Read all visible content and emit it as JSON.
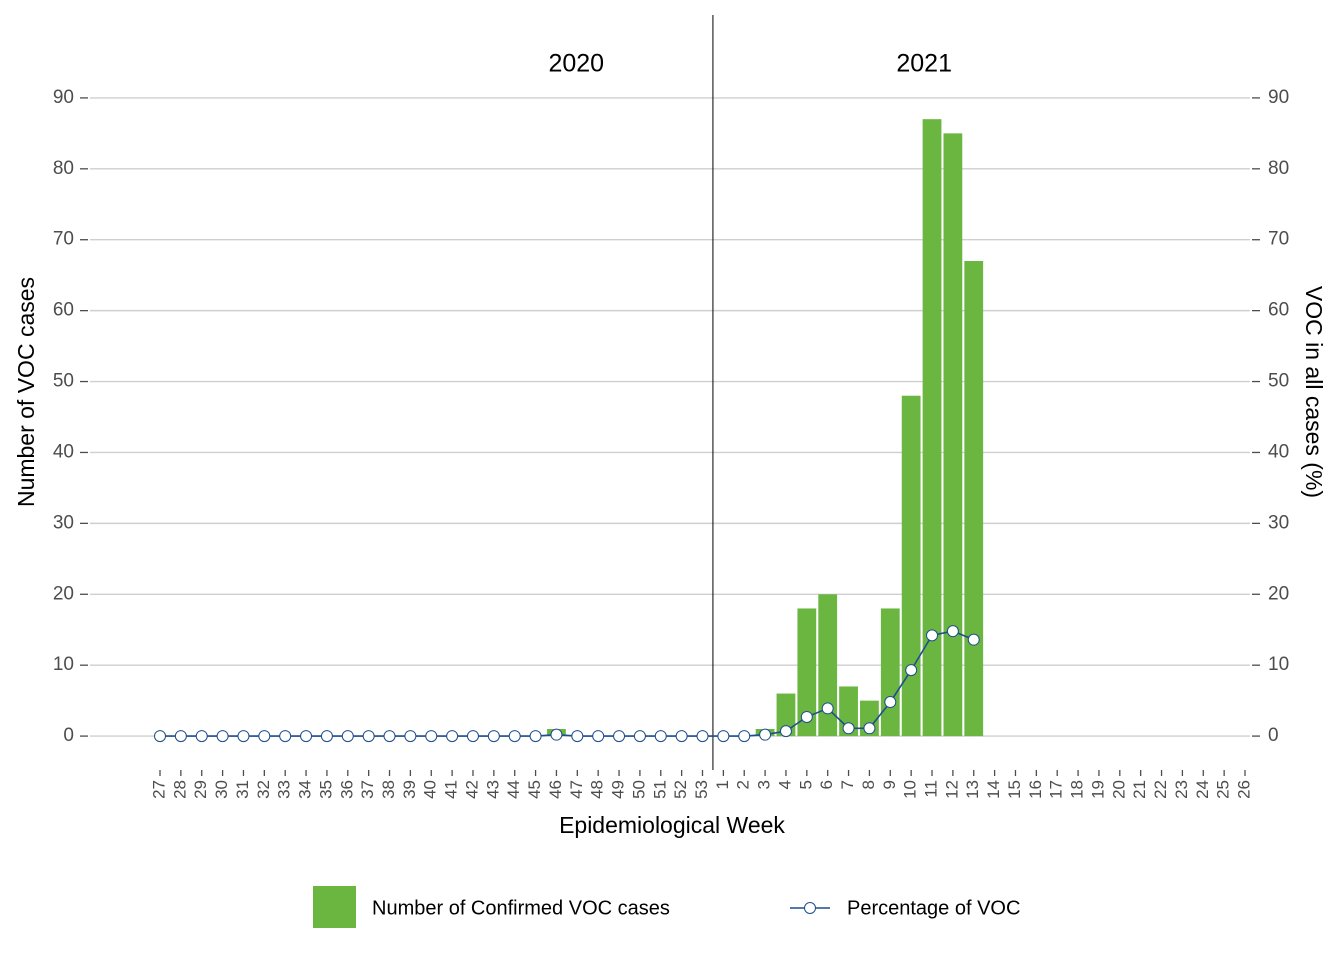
{
  "chart_data": {
    "type": "bar",
    "groups": [
      "2020",
      "2021"
    ],
    "x_label": "Epidemiological Week",
    "y_label": "Number of VOC cases",
    "y2_label": "VOC in all cases (%)",
    "categories": [
      "27",
      "28",
      "29",
      "30",
      "31",
      "32",
      "33",
      "34",
      "35",
      "36",
      "37",
      "38",
      "39",
      "40",
      "41",
      "42",
      "43",
      "44",
      "45",
      "46",
      "47",
      "48",
      "49",
      "50",
      "51",
      "52",
      "53",
      "1",
      "2",
      "3",
      "4",
      "5",
      "6",
      "7",
      "8",
      "9",
      "10",
      "11",
      "12",
      "13",
      "14",
      "15",
      "16",
      "17",
      "18",
      "19",
      "20",
      "21",
      "22",
      "23",
      "24",
      "25",
      "26"
    ],
    "series": [
      {
        "name": "Number of Confirmed VOC cases",
        "type": "bar",
        "color": "#6ab640",
        "values": [
          0,
          0,
          0,
          0,
          0,
          0,
          0,
          0,
          0,
          0,
          0,
          0,
          0,
          0,
          0,
          0,
          0,
          0,
          0,
          1,
          0,
          0,
          0,
          0,
          0,
          0,
          0,
          0,
          0,
          1,
          6,
          18,
          20,
          7,
          5,
          18,
          48,
          87,
          85,
          67,
          null,
          null,
          null,
          null,
          null,
          null,
          null,
          null,
          null,
          null,
          null,
          null,
          null
        ]
      },
      {
        "name": "Percentage of VOC",
        "type": "line",
        "axis": "y2",
        "color": "#1f4e8c",
        "values": [
          0,
          0,
          0,
          0,
          0,
          0,
          0,
          0,
          0,
          0,
          0,
          0,
          0,
          0,
          0,
          0,
          0,
          0,
          0,
          0.2,
          0,
          0,
          0,
          0,
          0,
          0,
          0,
          0,
          0,
          0.2,
          0.7,
          2.7,
          3.9,
          1.1,
          1.1,
          4.8,
          9.3,
          14.2,
          14.8,
          13.6,
          null,
          null,
          null,
          null,
          null,
          null,
          null,
          null,
          null,
          null,
          null,
          null,
          null
        ]
      }
    ],
    "ylim": [
      -4.5,
      94.5
    ],
    "yticks": [
      0,
      10,
      20,
      30,
      40,
      50,
      60,
      70,
      80,
      90
    ],
    "y2lim": [
      -4.5,
      94.5
    ],
    "y2ticks": [
      0,
      10,
      20,
      30,
      40,
      50,
      60,
      70,
      80,
      90
    ],
    "grid": true
  }
}
